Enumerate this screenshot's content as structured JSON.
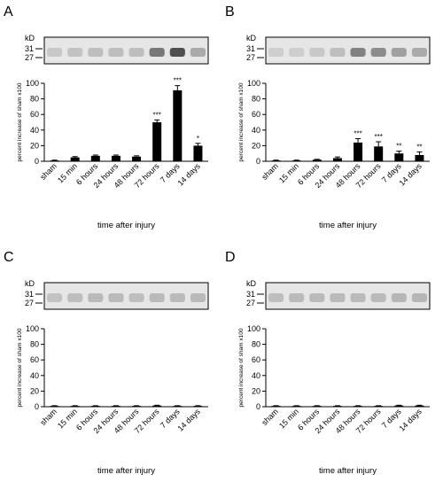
{
  "chart_data": [
    {
      "panel_letter": "A",
      "type": "bar",
      "blot": {
        "unit_label": "kD",
        "markers": [
          "31",
          "27"
        ]
      },
      "categories": [
        "sham",
        "15 min",
        "6 hours",
        "24 hours",
        "48 hours",
        "72 hours",
        "7 days",
        "14 days"
      ],
      "values": [
        1,
        5,
        7,
        7,
        6,
        50,
        91,
        20
      ],
      "errors": [
        0.5,
        1,
        1,
        1,
        1,
        3,
        6,
        3
      ],
      "significance": [
        "",
        "",
        "",
        "",
        "",
        "***",
        "***",
        "*"
      ],
      "ylabel": "percent increase of sham x100",
      "xlabel": "time after injury",
      "ylim": [
        0,
        100
      ],
      "yticks": [
        "0",
        "20",
        "40",
        "60",
        "80",
        "100"
      ]
    },
    {
      "panel_letter": "B",
      "type": "bar",
      "blot": {
        "unit_label": "kD",
        "markers": [
          "31",
          "27"
        ]
      },
      "categories": [
        "sham",
        "15 min",
        "6 hours",
        "24 hours",
        "48 hours",
        "72 hours",
        "7 days",
        "14 days"
      ],
      "values": [
        1,
        1,
        2,
        4,
        24,
        19,
        10,
        8
      ],
      "errors": [
        0.5,
        0.5,
        0.5,
        1.5,
        5,
        6,
        3,
        4
      ],
      "significance": [
        "",
        "",
        "",
        "",
        "***",
        "***",
        "**",
        "**"
      ],
      "ylabel": "percent increase of sham x100",
      "xlabel": "time after injury",
      "ylim": [
        0,
        100
      ],
      "yticks": [
        "0",
        "20",
        "40",
        "60",
        "80",
        "100"
      ]
    },
    {
      "panel_letter": "C",
      "type": "bar",
      "blot": {
        "unit_label": "kD",
        "markers": [
          "31",
          "27"
        ]
      },
      "categories": [
        "sham",
        "15 min",
        "6 hours",
        "24 hours",
        "48 hours",
        "72 hours",
        "7 days",
        "14 days"
      ],
      "values": [
        1,
        1,
        1,
        1,
        1,
        1.5,
        1,
        1
      ],
      "errors": [
        0.3,
        0.3,
        0.3,
        0.3,
        0.3,
        0.4,
        0.3,
        0.3
      ],
      "significance": [
        "",
        "",
        "",
        "",
        "",
        "",
        "",
        ""
      ],
      "ylabel": "percent increase of sham x100",
      "xlabel": "time after injury",
      "ylim": [
        0,
        100
      ],
      "yticks": [
        "0",
        "20",
        "40",
        "60",
        "80",
        "100"
      ]
    },
    {
      "panel_letter": "D",
      "type": "bar",
      "blot": {
        "unit_label": "kD",
        "markers": [
          "31",
          "27"
        ]
      },
      "categories": [
        "sham",
        "15 min",
        "6 hours",
        "24 hours",
        "48 hours",
        "72 hours",
        "7 days",
        "14 days"
      ],
      "values": [
        1,
        1,
        1,
        1,
        1,
        1,
        1.5,
        1.5
      ],
      "errors": [
        0.3,
        0.3,
        0.3,
        0.3,
        0.3,
        0.3,
        0.4,
        0.4
      ],
      "significance": [
        "",
        "",
        "",
        "",
        "",
        "",
        "",
        ""
      ],
      "ylabel": "percent increase of sham x100",
      "xlabel": "time after injury",
      "ylim": [
        0,
        100
      ],
      "yticks": [
        "0",
        "20",
        "40",
        "60",
        "80",
        "100"
      ]
    }
  ]
}
